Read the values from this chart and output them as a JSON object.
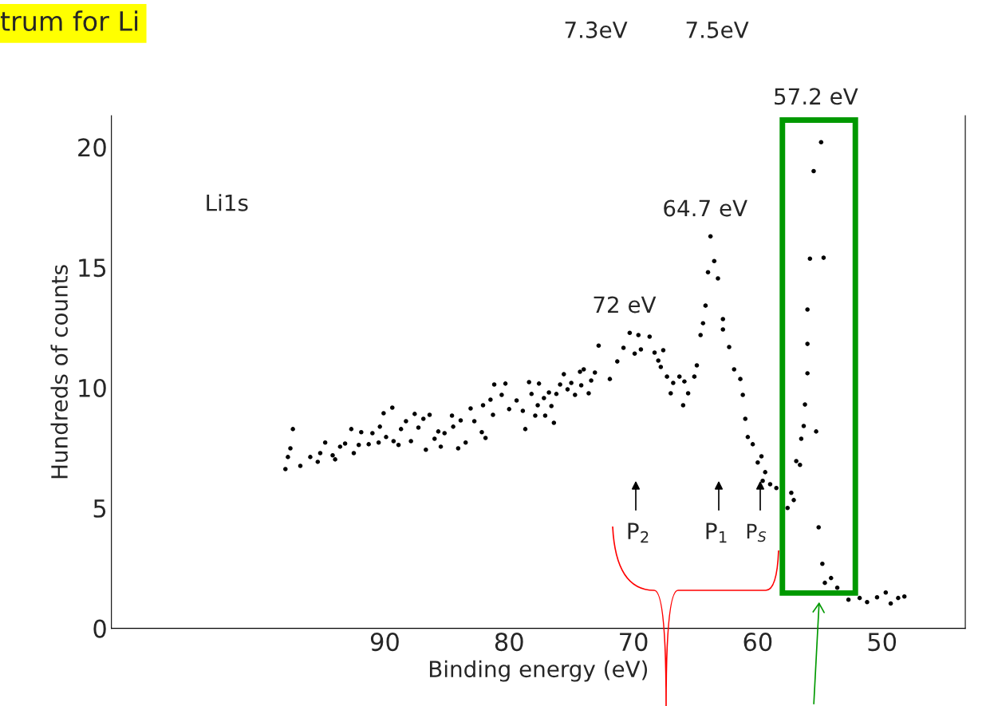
{
  "chart_data": {
    "type": "scatter",
    "title": "trum for Li",
    "xlabel": "Binding energy (eV)",
    "ylabel": "Hundreds of counts",
    "xlim": [
      112,
      43.3
    ],
    "ylim": [
      0,
      21.3
    ],
    "xticks": [
      90,
      80,
      70,
      60,
      50
    ],
    "yticks": [
      0,
      5,
      10,
      15,
      20
    ],
    "grid": false,
    "legend": false,
    "marker": "circle",
    "series": [
      {
        "color": "#000000",
        "x": [
          98.0,
          97.8,
          97.4,
          97.6,
          96.8,
          96.0,
          95.4,
          95.2,
          94.8,
          94.2,
          94.0,
          93.6,
          93.2,
          92.7,
          92.5,
          92.1,
          91.9,
          91.3,
          91.0,
          90.5,
          90.4,
          90.1,
          89.9,
          89.4,
          89.3,
          88.9,
          88.7,
          88.3,
          87.9,
          87.6,
          87.3,
          86.9,
          86.7,
          86.4,
          86.0,
          85.7,
          85.5,
          85.2,
          84.6,
          84.5,
          84.1,
          83.9,
          83.5,
          83.1,
          82.8,
          82.2,
          81.9,
          82.1,
          81.5,
          81.2,
          81.3,
          80.6,
          80.3,
          80.0,
          79.4,
          78.9,
          78.7,
          78.4,
          78.2,
          77.9,
          77.7,
          77.6,
          77.2,
          77.1,
          76.8,
          76.6,
          76.4,
          76.2,
          75.9,
          75.6,
          75.3,
          75.0,
          74.7,
          74.3,
          74.2,
          74.0,
          73.6,
          73.4,
          73.1,
          72.8,
          71.9,
          71.3,
          70.8,
          70.3,
          69.9,
          69.6,
          69.4,
          68.7,
          68.3,
          68.0,
          67.6,
          67.8,
          67.3,
          67.0,
          66.8,
          66.3,
          66.0,
          65.9,
          65.6,
          65.1,
          64.9,
          64.6,
          64.4,
          64.2,
          64.0,
          63.8,
          63.5,
          63.2,
          62.8,
          62.8,
          62.3,
          61.9,
          61.4,
          61.2,
          61.0,
          60.8,
          60.4,
          60.0,
          59.7,
          59.4,
          59.6,
          59.0,
          58.5,
          57.6,
          57.3,
          57.1,
          54.9,
          55.5,
          55.8,
          54.7,
          56.0,
          56.0,
          56.0,
          56.2,
          56.3,
          55.3,
          56.5,
          56.9,
          56.6,
          55.1,
          54.8,
          54.1,
          54.6,
          53.6,
          52.7,
          51.8,
          51.2,
          50.4,
          49.7,
          49.3,
          48.7,
          48.2
        ],
        "values": [
          6.62,
          7.12,
          8.28,
          7.48,
          6.75,
          7.12,
          6.92,
          7.28,
          7.72,
          7.19,
          7.02,
          7.55,
          7.68,
          8.28,
          7.28,
          7.62,
          8.15,
          7.65,
          8.11,
          7.72,
          8.38,
          8.94,
          7.95,
          9.17,
          7.78,
          7.62,
          8.28,
          8.61,
          7.78,
          8.91,
          8.34,
          8.71,
          7.42,
          8.87,
          7.88,
          8.18,
          7.55,
          8.11,
          8.84,
          8.38,
          7.48,
          8.64,
          7.72,
          9.14,
          8.61,
          8.15,
          7.91,
          9.27,
          9.5,
          10.13,
          8.87,
          9.7,
          10.17,
          9.11,
          9.47,
          9.04,
          8.28,
          10.23,
          9.74,
          8.84,
          9.27,
          10.17,
          9.57,
          8.84,
          9.8,
          9.24,
          8.54,
          9.74,
          10.13,
          10.56,
          9.93,
          10.2,
          9.7,
          10.66,
          10.1,
          10.76,
          9.77,
          10.3,
          10.63,
          11.75,
          10.36,
          11.09,
          11.66,
          12.28,
          11.42,
          12.19,
          11.59,
          12.12,
          11.46,
          11.13,
          11.56,
          10.86,
          10.46,
          9.77,
          10.2,
          10.46,
          9.27,
          10.26,
          9.77,
          10.46,
          10.93,
          12.19,
          12.68,
          13.41,
          14.8,
          16.29,
          15.26,
          14.54,
          12.85,
          12.42,
          11.69,
          10.76,
          10.36,
          9.7,
          8.71,
          7.95,
          7.65,
          6.89,
          7.15,
          6.49,
          6.13,
          5.99,
          5.83,
          5.0,
          5.63,
          5.33,
          20.2,
          19.0,
          15.36,
          15.4,
          13.25,
          11.82,
          10.6,
          9.3,
          8.41,
          8.18,
          7.88,
          6.95,
          6.79,
          4.2,
          2.68,
          2.09,
          1.89,
          1.69,
          1.19,
          1.26,
          1.09,
          1.29,
          1.49,
          1.03,
          1.26,
          1.32
        ]
      }
    ],
    "annotations": [
      "7.3eV",
      "7.5eV",
      "Li1s",
      {
        "text": "72 eV",
        "x": 70.3,
        "y": 12.28
      },
      {
        "text": "64.7 eV",
        "x": 63.8,
        "y": 16.29
      },
      {
        "text": "57.2 eV",
        "x": 54.9,
        "y": 20.2
      },
      "P$_{2}$",
      "P$_{1}$",
      "P$_{S}$"
    ]
  }
}
